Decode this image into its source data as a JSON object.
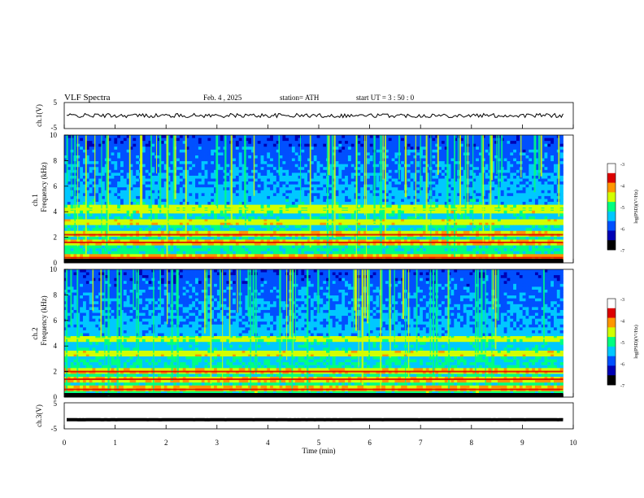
{
  "header": {
    "title": "VLF  Spectra",
    "date": "Feb. 4  , 2025",
    "station": "station= ATH",
    "start": "start  UT  =   3  : 50 : 0"
  },
  "chart_data": {
    "type": "heatmap",
    "x": {
      "label": "Time  (min)",
      "range": [
        0,
        10
      ],
      "ticks": [
        "0",
        "1",
        "2",
        "3",
        "4",
        "5",
        "6",
        "7",
        "8",
        "9",
        "10"
      ],
      "data_end": 9.8
    },
    "panels": [
      {
        "id": "ch1-waveform",
        "type": "line",
        "ylabel": "ch.1(V)",
        "yticks": [
          "5",
          "-5"
        ],
        "ylim": [
          -5,
          5
        ],
        "baseline": 0
      },
      {
        "id": "ch1-spectrogram",
        "type": "heatmap",
        "ylabel_top": "ch.1",
        "ylabel": "Frequency  (kHz)",
        "yticks": [
          "0",
          "2",
          "4",
          "6",
          "8",
          "10"
        ],
        "ylim": [
          0,
          10
        ],
        "bands_khz": [
          0.4,
          1.6,
          2.2,
          3.2,
          4.2
        ],
        "colorbar": {
          "label": "log(PSD)(V²/Hz)",
          "ticks": [
            "-3",
            "-4",
            "-5",
            "-6",
            "-7"
          ],
          "range": [
            -7,
            -3
          ]
        }
      },
      {
        "id": "ch2-spectrogram",
        "type": "heatmap",
        "ylabel_top": "ch.2",
        "ylabel": "Frequency  (kHz)",
        "yticks": [
          "0",
          "2",
          "4",
          "6",
          "8",
          "10"
        ],
        "ylim": [
          0,
          10
        ],
        "bands_khz": [
          0.6,
          1.4,
          2.0,
          3.4,
          4.6
        ],
        "colorbar": {
          "label": "log(PSD)(V²/Hz)",
          "ticks": [
            "-3",
            "-4",
            "-5",
            "-6",
            "-7"
          ],
          "range": [
            -7,
            -3
          ]
        }
      },
      {
        "id": "ch3-waveform",
        "type": "line",
        "ylabel": "ch.3(V)",
        "yticks": [
          "5",
          "-5"
        ],
        "ylim": [
          -5,
          5
        ],
        "baseline": -1.5
      }
    ],
    "colormap": [
      "#000000",
      "#0000b4",
      "#0050ff",
      "#00c8ff",
      "#00ff80",
      "#d2ff00",
      "#ff9600",
      "#dc0000",
      "#ffffff"
    ]
  }
}
